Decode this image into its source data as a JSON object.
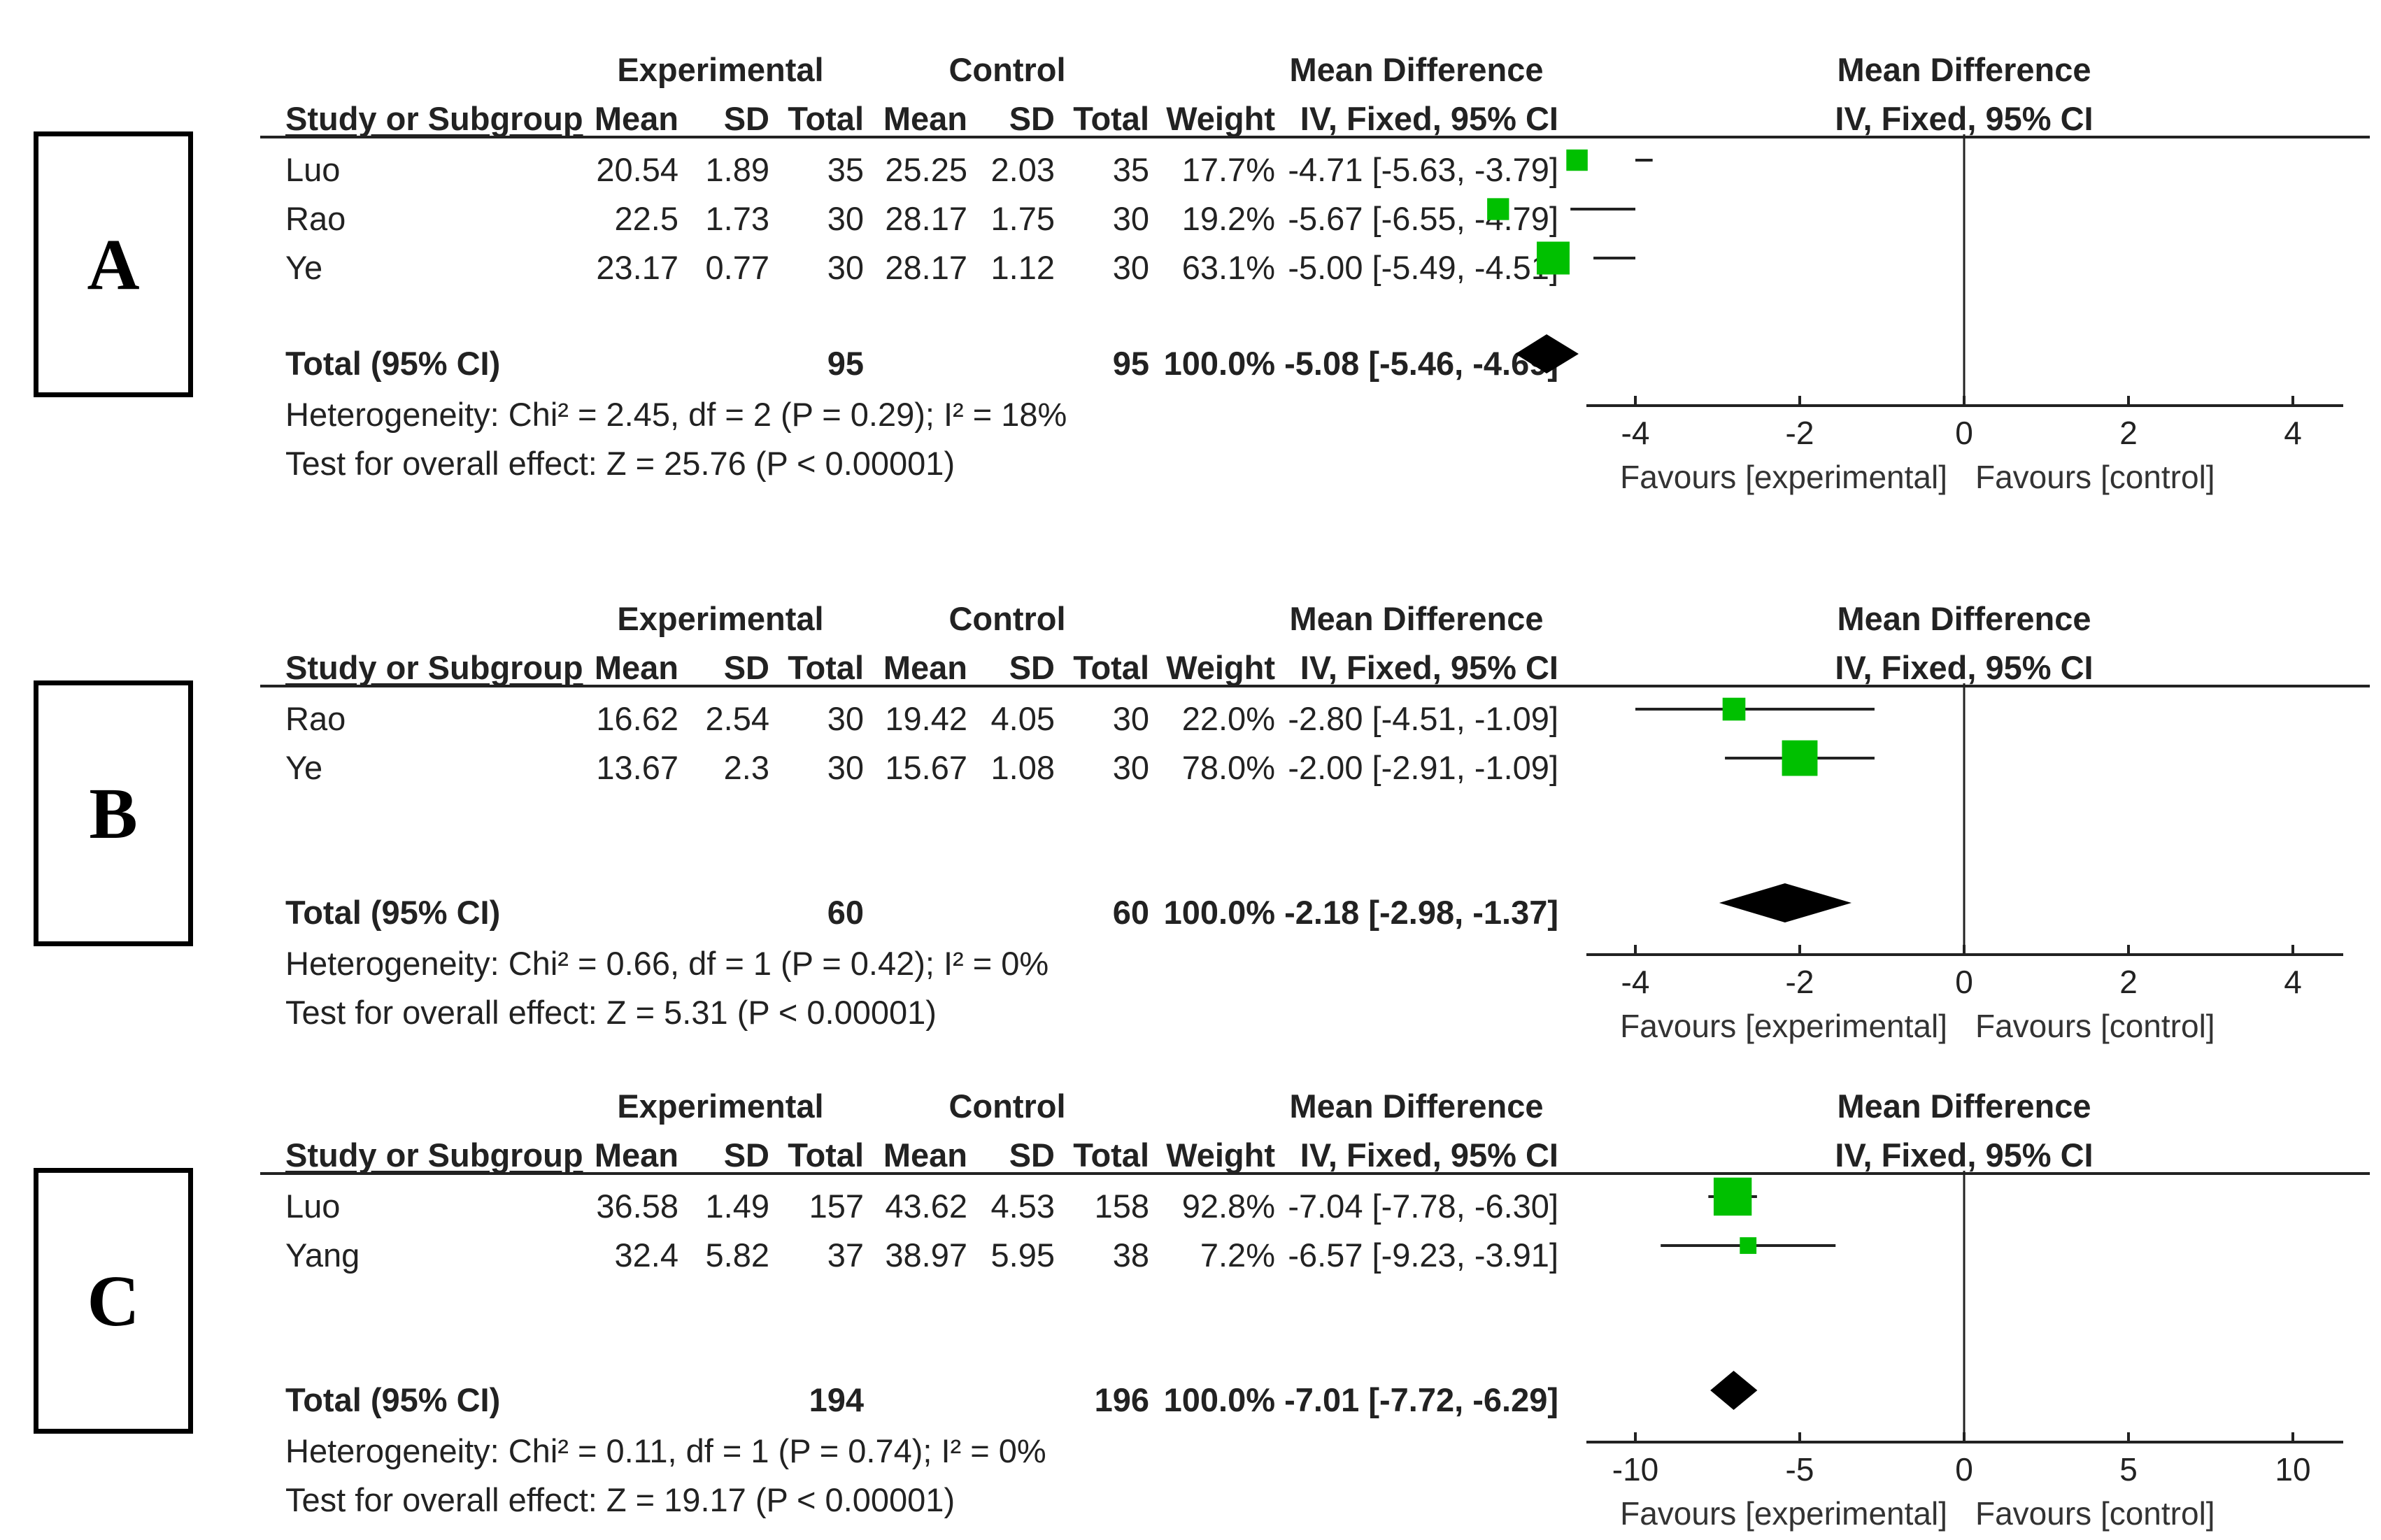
{
  "headers": {
    "study": "Study or Subgroup",
    "experimental": "Experimental",
    "control": "Control",
    "mean": "Mean",
    "sd": "SD",
    "total": "Total",
    "weight": "Weight",
    "md_title": "Mean Difference",
    "md_method": "IV, Fixed, 95% CI",
    "plot_title": "Mean Difference",
    "plot_method": "IV, Fixed, 95% CI",
    "favours_exp": "Favours [experimental]",
    "favours_ctrl": "Favours [control]"
  },
  "chart_data": [
    {
      "type": "forest",
      "label": "A",
      "xlim": [
        -4,
        4
      ],
      "ticks": [
        "-4",
        "-2",
        "0",
        "2",
        "4"
      ],
      "studies": [
        {
          "name": "Luo",
          "exp_mean": "20.54",
          "exp_sd": "1.89",
          "exp_total": "35",
          "ctrl_mean": "25.25",
          "ctrl_sd": "2.03",
          "ctrl_total": "35",
          "weight": "17.7%",
          "md_text": "-4.71 [-5.63, -3.79]",
          "md": -4.71,
          "lo": -5.63,
          "hi": -3.79
        },
        {
          "name": "Rao",
          "exp_mean": "22.5",
          "exp_sd": "1.73",
          "exp_total": "30",
          "ctrl_mean": "28.17",
          "ctrl_sd": "1.75",
          "ctrl_total": "30",
          "weight": "19.2%",
          "md_text": "-5.67 [-6.55, -4.79]",
          "md": -5.67,
          "lo": -6.55,
          "hi": -4.79
        },
        {
          "name": "Ye",
          "exp_mean": "23.17",
          "exp_sd": "0.77",
          "exp_total": "30",
          "ctrl_mean": "28.17",
          "ctrl_sd": "1.12",
          "ctrl_total": "30",
          "weight": "63.1%",
          "md_text": "-5.00 [-5.49, -4.51]",
          "md": -5.0,
          "lo": -5.49,
          "hi": -4.51
        }
      ],
      "total": {
        "label": "Total (95% CI)",
        "exp_total": "95",
        "ctrl_total": "95",
        "weight": "100.0%",
        "md_text": "-5.08 [-5.46, -4.69]",
        "md": -5.08,
        "lo": -5.46,
        "hi": -4.69
      },
      "heterogeneity": "Heterogeneity: Chi² = 2.45, df = 2 (P = 0.29); I² = 18%",
      "overall": "Test for overall effect: Z = 25.76 (P < 0.00001)"
    },
    {
      "type": "forest",
      "label": "B",
      "xlim": [
        -4,
        4
      ],
      "ticks": [
        "-4",
        "-2",
        "0",
        "2",
        "4"
      ],
      "studies": [
        {
          "name": "Rao",
          "exp_mean": "16.62",
          "exp_sd": "2.54",
          "exp_total": "30",
          "ctrl_mean": "19.42",
          "ctrl_sd": "4.05",
          "ctrl_total": "30",
          "weight": "22.0%",
          "md_text": "-2.80 [-4.51, -1.09]",
          "md": -2.8,
          "lo": -4.51,
          "hi": -1.09
        },
        {
          "name": "Ye",
          "exp_mean": "13.67",
          "exp_sd": "2.3",
          "exp_total": "30",
          "ctrl_mean": "15.67",
          "ctrl_sd": "1.08",
          "ctrl_total": "30",
          "weight": "78.0%",
          "md_text": "-2.00 [-2.91, -1.09]",
          "md": -2.0,
          "lo": -2.91,
          "hi": -1.09
        }
      ],
      "total": {
        "label": "Total (95% CI)",
        "exp_total": "60",
        "ctrl_total": "60",
        "weight": "100.0%",
        "md_text": "-2.18 [-2.98, -1.37]",
        "md": -2.18,
        "lo": -2.98,
        "hi": -1.37
      },
      "heterogeneity": "Heterogeneity: Chi² = 0.66, df = 1 (P = 0.42); I² = 0%",
      "overall": "Test for overall effect: Z = 5.31 (P < 0.00001)"
    },
    {
      "type": "forest",
      "label": "C",
      "xlim": [
        -10,
        10
      ],
      "ticks": [
        "-10",
        "-5",
        "0",
        "5",
        "10"
      ],
      "studies": [
        {
          "name": "Luo",
          "exp_mean": "36.58",
          "exp_sd": "1.49",
          "exp_total": "157",
          "ctrl_mean": "43.62",
          "ctrl_sd": "4.53",
          "ctrl_total": "158",
          "weight": "92.8%",
          "md_text": "-7.04 [-7.78, -6.30]",
          "md": -7.04,
          "lo": -7.78,
          "hi": -6.3
        },
        {
          "name": "Yang",
          "exp_mean": "32.4",
          "exp_sd": "5.82",
          "exp_total": "37",
          "ctrl_mean": "38.97",
          "ctrl_sd": "5.95",
          "ctrl_total": "38",
          "weight": "7.2%",
          "md_text": "-6.57 [-9.23, -3.91]",
          "md": -6.57,
          "lo": -9.23,
          "hi": -3.91
        }
      ],
      "total": {
        "label": "Total (95% CI)",
        "exp_total": "194",
        "ctrl_total": "196",
        "weight": "100.0%",
        "md_text": "-7.01 [-7.72, -6.29]",
        "md": -7.01,
        "lo": -7.72,
        "hi": -6.29
      },
      "heterogeneity": "Heterogeneity: Chi² = 0.11, df = 1 (P = 0.74); I² = 0%",
      "overall": "Test for overall effect: Z = 19.17 (P < 0.00001)"
    }
  ],
  "colors": {
    "study_marker": "#00c000",
    "diamond": "#000000",
    "line": "#222222"
  }
}
